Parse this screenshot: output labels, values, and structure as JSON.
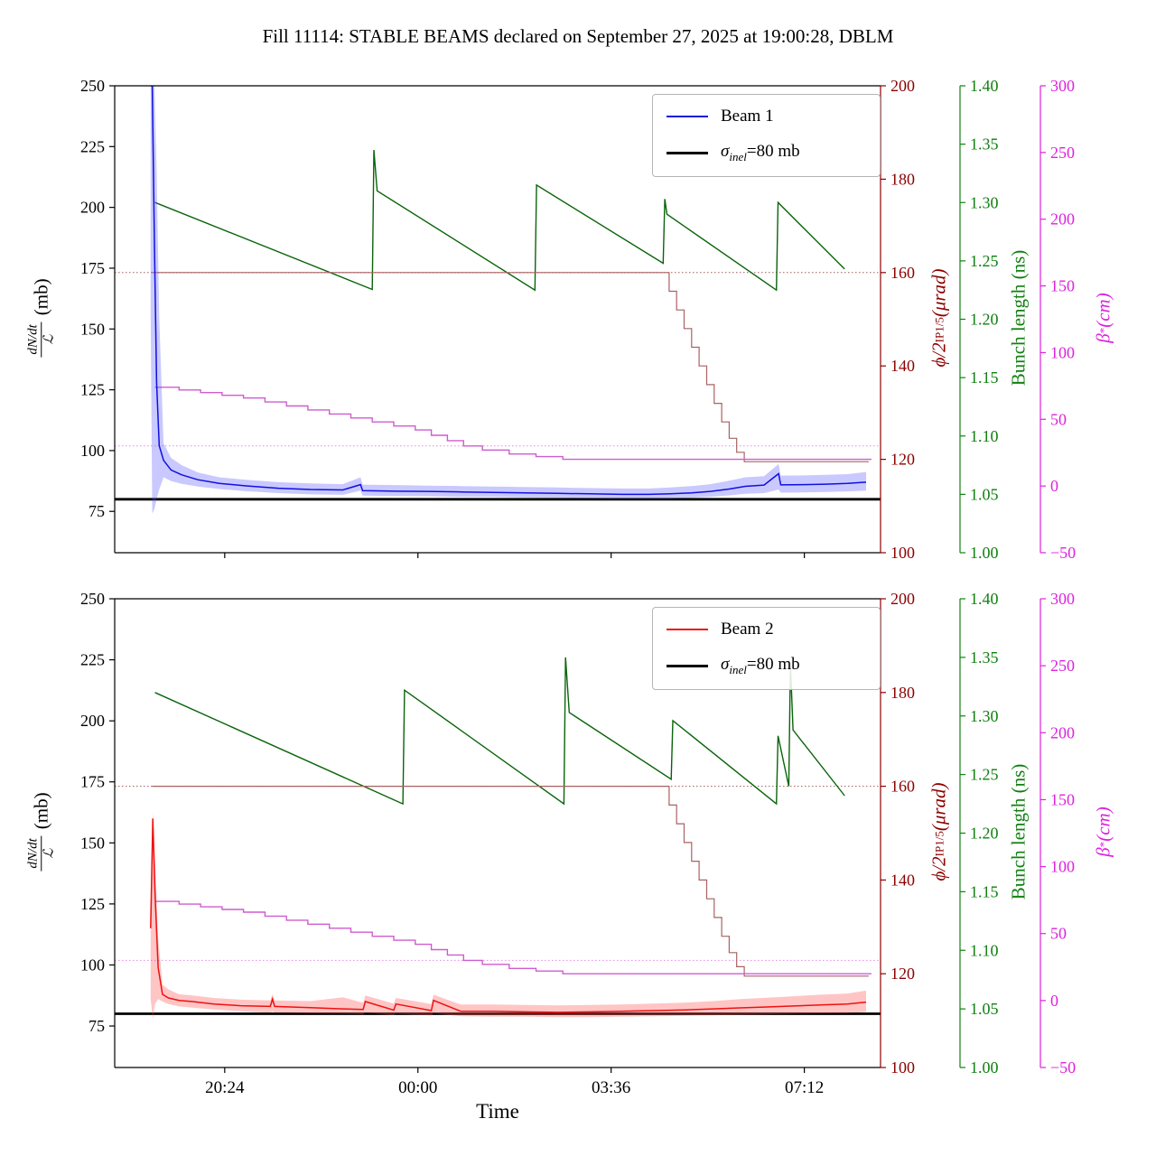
{
  "title": "Fill 11114: STABLE BEAMS declared on September 27, 2025 at 19:00:28, DBLM",
  "axes": {
    "x": {
      "label": "Time",
      "lim": [
        18.35,
        32.62
      ],
      "tick_values": [
        20.4,
        24.0,
        27.6,
        31.2
      ],
      "tick_labels": [
        "20:24",
        "00:00",
        "03:36",
        "07:12"
      ]
    },
    "left": {
      "label": {
        "num": "dN/dt",
        "den": "ℒ",
        "unit": "(mb)"
      },
      "lim": [
        58,
        250
      ],
      "tick_values": [
        75,
        100,
        125,
        150,
        175,
        200,
        225,
        250
      ],
      "tick_labels": [
        "75",
        "100",
        "125",
        "150",
        "175",
        "200",
        "225",
        "250"
      ],
      "color": "#000000"
    },
    "crossing": {
      "label": {
        "main": "ϕ/2",
        "sub": "IP1/5",
        "unit": " (μrad)"
      },
      "lim": [
        100,
        200
      ],
      "tick_values": [
        100,
        120,
        140,
        160,
        180,
        200
      ],
      "tick_labels": [
        "100",
        "120",
        "140",
        "160",
        "180",
        "200"
      ],
      "color": "#8b0000"
    },
    "bunch": {
      "label": "Bunch length (ns)",
      "lim": [
        1.0,
        1.4
      ],
      "tick_values": [
        1.0,
        1.05,
        1.1,
        1.15,
        1.2,
        1.25,
        1.3,
        1.35,
        1.4
      ],
      "tick_labels": [
        "1.00",
        "1.05",
        "1.10",
        "1.15",
        "1.20",
        "1.25",
        "1.30",
        "1.35",
        "1.40"
      ],
      "color": "#108010"
    },
    "beta": {
      "label": {
        "main": "β",
        "sup": "*",
        "unit": " (cm)"
      },
      "lim": [
        -50,
        300
      ],
      "tick_values": [
        -50,
        0,
        50,
        100,
        150,
        200,
        250,
        300
      ],
      "tick_labels": [
        "−50",
        "0",
        "50",
        "100",
        "150",
        "200",
        "250",
        "300"
      ],
      "color": "#dd22dd"
    }
  },
  "chart_data": [
    {
      "name": "beam1-panel",
      "type": "line",
      "legend": {
        "beam": "Beam 1",
        "beam_color": "#1010e0",
        "sigma_sym": "σ",
        "sigma_sub": "inel",
        "sigma_rest": "=80 mb",
        "sigma_color": "#000000"
      },
      "series": [
        {
          "name": "crossing-angle-target",
          "axis": "crossing",
          "type": "line",
          "color": "#9e5c5c",
          "width": 1,
          "dash": "1.5,2.5",
          "x": [
            18.35,
            32.62
          ],
          "y": [
            160,
            160
          ]
        },
        {
          "name": "beta-star-target",
          "axis": "beta",
          "type": "line",
          "color": "#e687e6",
          "width": 1,
          "dash": "1.5,2.5",
          "x": [
            18.35,
            32.62
          ],
          "y": [
            30,
            30
          ]
        },
        {
          "name": "bunch-length",
          "axis": "bunch",
          "type": "line",
          "color": "#0a640a",
          "width": 1.4,
          "x": [
            19.1,
            23.15,
            23.18,
            23.24,
            26.18,
            26.21,
            28.57,
            28.6,
            28.64,
            30.68,
            30.71,
            31.95
          ],
          "y": [
            1.3,
            1.2255,
            1.345,
            1.31,
            1.225,
            1.315,
            1.248,
            1.303,
            1.29,
            1.225,
            1.3,
            1.243
          ]
        },
        {
          "name": "crossing-angle",
          "axis": "crossing",
          "type": "step",
          "color": "#a96262",
          "width": 1.2,
          "x": [
            19.05,
            28.55,
            28.68,
            28.82,
            28.96,
            29.1,
            29.24,
            29.38,
            29.52,
            29.66,
            29.8,
            29.94,
            30.08,
            32.4
          ],
          "y": [
            160,
            160,
            156,
            152,
            148,
            144,
            140,
            136,
            132,
            128,
            124.5,
            121.5,
            119.5,
            119.5
          ]
        },
        {
          "name": "beta-star",
          "axis": "beta",
          "type": "step",
          "color": "#cf5ccf",
          "width": 1.4,
          "x": [
            19.1,
            19.55,
            19.95,
            20.35,
            20.75,
            21.15,
            21.55,
            21.95,
            22.35,
            22.75,
            23.15,
            23.55,
            23.95,
            24.25,
            24.55,
            24.85,
            25.2,
            25.7,
            26.2,
            26.7,
            32.45
          ],
          "y": [
            74,
            72,
            70,
            68,
            66,
            63,
            60,
            57,
            54,
            51,
            48,
            45,
            42,
            38,
            34,
            30,
            27,
            24,
            22,
            20,
            20
          ]
        },
        {
          "name": "sigma-inel-line",
          "axis": "left",
          "type": "line",
          "color": "#000000",
          "width": 2.8,
          "x": [
            18.35,
            32.62
          ],
          "y": [
            80,
            80
          ]
        },
        {
          "name": "beam1-rate",
          "axis": "left",
          "type": "line",
          "color": "#1010e0",
          "width": 1.5,
          "band_color": "rgba(90,90,255,0.33)",
          "x": [
            19.02,
            19.05,
            19.09,
            19.13,
            19.18,
            19.26,
            19.4,
            19.6,
            19.9,
            20.3,
            20.8,
            21.4,
            22.0,
            22.6,
            22.93,
            22.97,
            23.6,
            24.2,
            24.8,
            25.4,
            26.0,
            26.6,
            27.2,
            27.8,
            28.3,
            28.7,
            29.1,
            29.45,
            29.8,
            30.1,
            30.45,
            30.72,
            30.76,
            31.2,
            31.6,
            32.0,
            32.35
          ],
          "y": [
            250,
            250,
            185,
            128,
            102,
            96,
            92,
            90,
            88,
            86.5,
            85.5,
            84.5,
            84,
            83.8,
            86,
            83.5,
            83.3,
            83.2,
            83,
            82.8,
            82.6,
            82.4,
            82.2,
            82,
            82,
            82.2,
            82.6,
            83.2,
            84.2,
            85.3,
            85.8,
            90.5,
            85.9,
            86,
            86.2,
            86.5,
            87
          ],
          "band_upper": [
            250,
            250,
            250,
            215,
            155,
            103,
            97,
            94,
            91,
            89,
            88,
            87,
            86.5,
            86.2,
            89,
            86,
            85.8,
            85.6,
            85.4,
            85.2,
            85,
            84.8,
            84.6,
            84.4,
            84.4,
            84.8,
            85.4,
            86.2,
            87.6,
            89,
            89.5,
            94.5,
            89.7,
            89.8,
            90,
            90.3,
            91.2
          ],
          "band_lower": [
            155,
            74,
            76,
            80,
            84,
            89,
            87.5,
            86.3,
            85.2,
            84.2,
            83.3,
            82.5,
            82,
            81.8,
            83.5,
            81.5,
            81.3,
            81.2,
            81,
            80.9,
            80.7,
            80.5,
            80.4,
            80.2,
            80.2,
            80.3,
            80.6,
            81,
            81.6,
            82.2,
            82.5,
            84,
            82.7,
            82.8,
            83,
            83.2,
            83.5
          ]
        }
      ]
    },
    {
      "name": "beam2-panel",
      "type": "line",
      "legend": {
        "beam": "Beam 2",
        "beam_color": "#ee1111",
        "sigma_sym": "σ",
        "sigma_sub": "inel",
        "sigma_rest": "=80 mb",
        "sigma_color": "#000000"
      },
      "series": [
        {
          "name": "crossing-angle-target",
          "axis": "crossing",
          "type": "line",
          "color": "#9e5c5c",
          "width": 1,
          "dash": "1.5,2.5",
          "x": [
            18.35,
            32.62
          ],
          "y": [
            160,
            160
          ]
        },
        {
          "name": "beta-star-target",
          "axis": "beta",
          "type": "line",
          "color": "#e687e6",
          "width": 1,
          "dash": "1.5,2.5",
          "x": [
            18.35,
            32.62
          ],
          "y": [
            30,
            30
          ]
        },
        {
          "name": "bunch-length",
          "axis": "bunch",
          "type": "line",
          "color": "#0a640a",
          "width": 1.4,
          "x": [
            19.1,
            23.72,
            23.75,
            26.72,
            26.75,
            26.82,
            28.72,
            28.75,
            30.68,
            30.71,
            30.91,
            30.94,
            30.99,
            31.95
          ],
          "y": [
            1.32,
            1.225,
            1.322,
            1.225,
            1.35,
            1.303,
            1.246,
            1.296,
            1.225,
            1.283,
            1.24,
            1.345,
            1.288,
            1.232
          ]
        },
        {
          "name": "crossing-angle",
          "axis": "crossing",
          "type": "step",
          "color": "#a96262",
          "width": 1.2,
          "x": [
            19.05,
            28.55,
            28.68,
            28.82,
            28.96,
            29.1,
            29.24,
            29.38,
            29.52,
            29.66,
            29.8,
            29.94,
            30.08,
            32.4
          ],
          "y": [
            160,
            160,
            156,
            152,
            148,
            144,
            140,
            136,
            132,
            128,
            124.5,
            121.5,
            119.5,
            119.5
          ]
        },
        {
          "name": "beta-star",
          "axis": "beta",
          "type": "step",
          "color": "#cf5ccf",
          "width": 1.4,
          "x": [
            19.1,
            19.55,
            19.95,
            20.35,
            20.75,
            21.15,
            21.55,
            21.95,
            22.35,
            22.75,
            23.15,
            23.55,
            23.95,
            24.25,
            24.55,
            24.85,
            25.2,
            25.7,
            26.2,
            26.7,
            32.45
          ],
          "y": [
            74,
            72,
            70,
            68,
            66,
            63,
            60,
            57,
            54,
            51,
            48,
            45,
            42,
            38,
            34,
            30,
            27,
            24,
            22,
            20,
            20
          ]
        },
        {
          "name": "sigma-inel-line",
          "axis": "left",
          "type": "line",
          "color": "#000000",
          "width": 2.8,
          "x": [
            18.35,
            32.62
          ],
          "y": [
            80,
            80
          ]
        },
        {
          "name": "beam2-rate",
          "axis": "left",
          "type": "line",
          "color": "#ee1111",
          "width": 1.5,
          "band_color": "rgba(255,80,80,0.33)",
          "x": [
            19.02,
            19.06,
            19.1,
            19.16,
            19.24,
            19.35,
            19.55,
            19.8,
            20.2,
            20.7,
            21.25,
            21.29,
            21.33,
            22.0,
            22.6,
            22.98,
            23.02,
            23.55,
            23.59,
            24.25,
            24.29,
            24.8,
            25.4,
            26.0,
            26.6,
            27.2,
            27.8,
            28.4,
            29.0,
            29.5,
            30.0,
            30.5,
            31.0,
            31.5,
            32.0,
            32.35
          ],
          "y": [
            115,
            160,
            130,
            99,
            88,
            86.5,
            85.5,
            85,
            84,
            83.3,
            83,
            86,
            83,
            82.5,
            82,
            81.8,
            85,
            81.5,
            84,
            81.3,
            85.5,
            81,
            81,
            80.8,
            80.6,
            80.8,
            81,
            81.3,
            81.6,
            82,
            82.4,
            82.8,
            83.2,
            83.6,
            84,
            84.8
          ],
          "band_upper": [
            125,
            163,
            144,
            111,
            92,
            90,
            88,
            87.5,
            86.5,
            85.8,
            85.5,
            88,
            85.5,
            85.2,
            86.8,
            84.5,
            87.5,
            84.2,
            86.5,
            84,
            87.8,
            83.8,
            83.8,
            83.6,
            83.4,
            83.6,
            83.8,
            84.2,
            84.6,
            85.2,
            86,
            86.6,
            87.2,
            87.8,
            88.3,
            89.5
          ],
          "band_lower": [
            86,
            78,
            84,
            86,
            85,
            84,
            83,
            82.5,
            81.8,
            81,
            80.5,
            81,
            80.5,
            80.2,
            80,
            79.8,
            80.5,
            79.5,
            80,
            79.3,
            80.2,
            79,
            78.8,
            78.8,
            78.6,
            78.6,
            78.8,
            79,
            79.2,
            79.4,
            79.6,
            79.8,
            80,
            80.2,
            80.3,
            80.8
          ]
        }
      ]
    }
  ]
}
